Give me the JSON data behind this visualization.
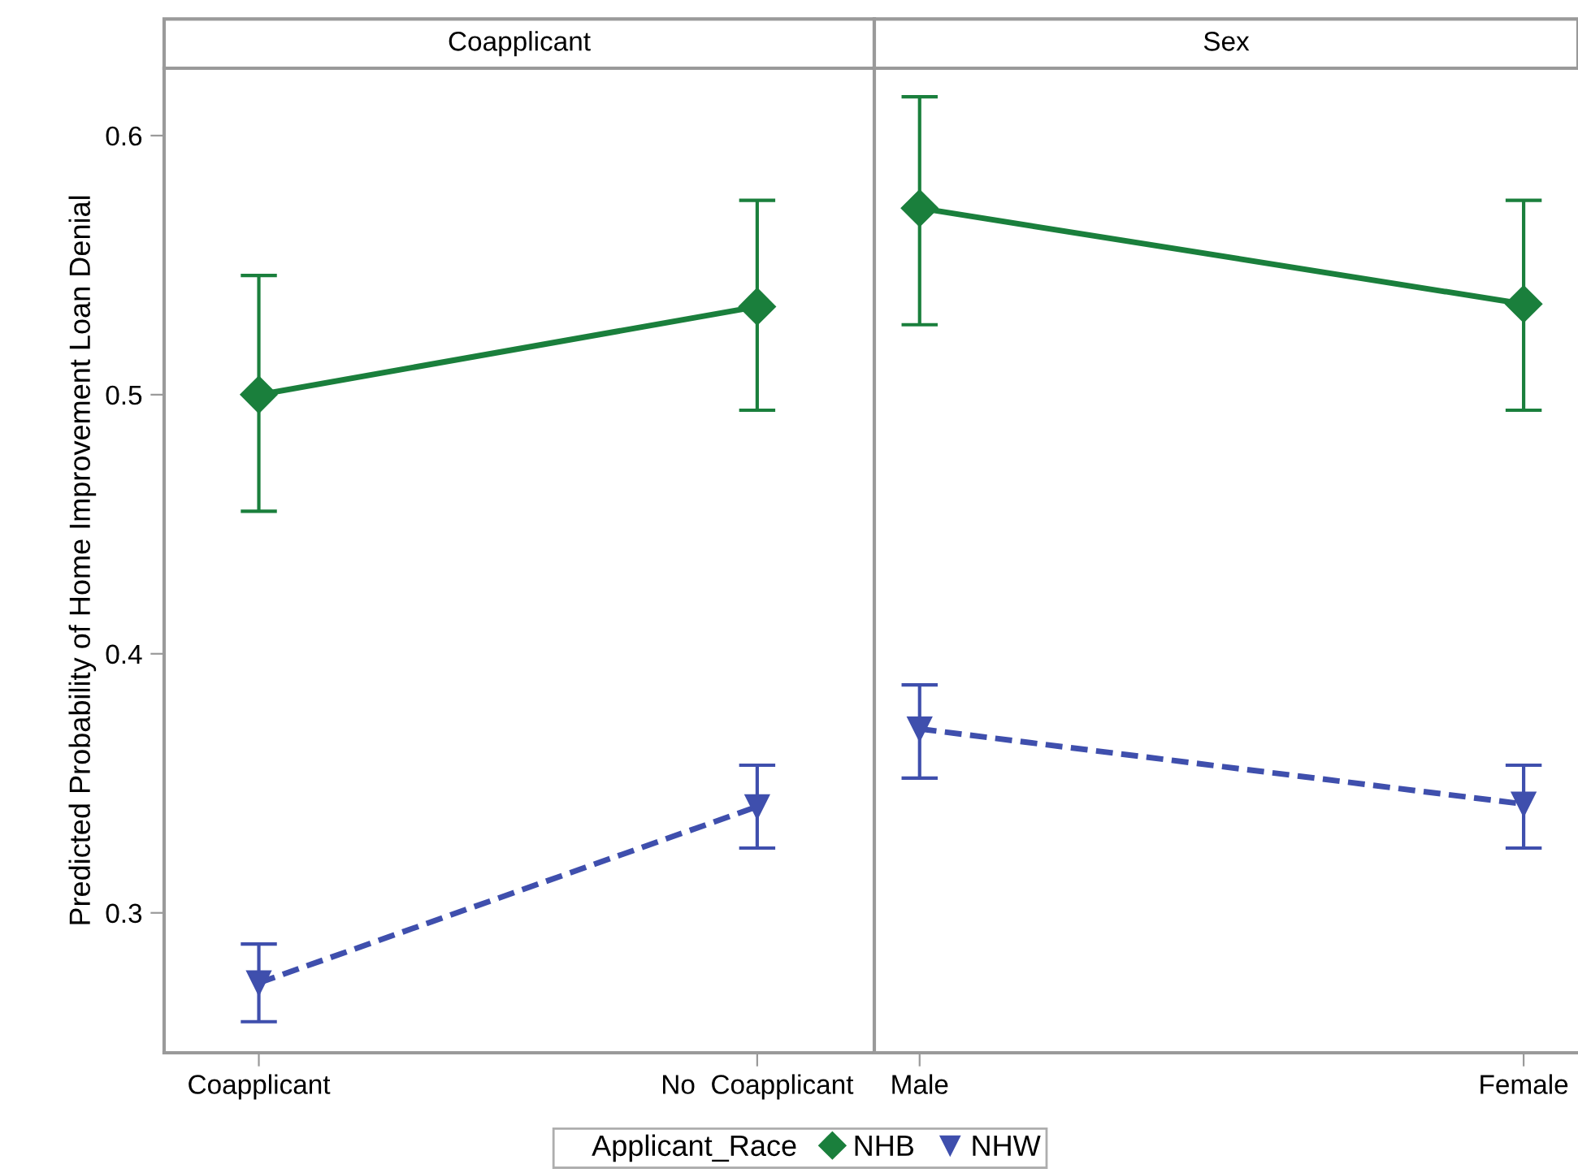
{
  "chart_data": [
    {
      "type": "line",
      "title": "Coapplicant",
      "ylabel": "Predicted Probability of Home Improvement Loan Denial",
      "categories": [
        "Coapplicant",
        "No  Coapplicant"
      ],
      "ylim": [
        0.246,
        0.626
      ],
      "yticks": [
        0.3,
        0.4,
        0.5,
        0.6
      ],
      "legend": "bottom",
      "legend_title": "Applicant_Race",
      "grid": false,
      "series": [
        {
          "name": "NHB",
          "color": "#1a7f3c",
          "marker": "diamond",
          "line_style": "solid",
          "values": [
            0.5,
            0.534
          ],
          "errors": [
            [
              0.455,
              0.546
            ],
            [
              0.494,
              0.575
            ]
          ]
        },
        {
          "name": "NHW",
          "color": "#3f4fad",
          "marker": "triangle",
          "line_style": "dashed",
          "values": [
            0.273,
            0.341
          ],
          "errors": [
            [
              0.258,
              0.288
            ],
            [
              0.325,
              0.357
            ]
          ]
        }
      ]
    },
    {
      "type": "line",
      "title": "Sex",
      "categories": [
        "Male",
        "Female"
      ],
      "ylim": [
        0.246,
        0.626
      ],
      "tick_labels": "x",
      "grid": false,
      "series": [
        {
          "name": "NHB",
          "color": "#1a7f3c",
          "marker": "diamond",
          "line_style": "solid",
          "values": [
            0.572,
            0.535
          ],
          "errors": [
            [
              0.527,
              0.615
            ],
            [
              0.494,
              0.575
            ]
          ]
        },
        {
          "name": "NHW",
          "color": "#3f4fad",
          "marker": "triangle",
          "line_style": "dashed",
          "values": [
            0.371,
            0.342
          ],
          "errors": [
            [
              0.352,
              0.388
            ],
            [
              0.325,
              0.357
            ]
          ]
        }
      ]
    }
  ]
}
